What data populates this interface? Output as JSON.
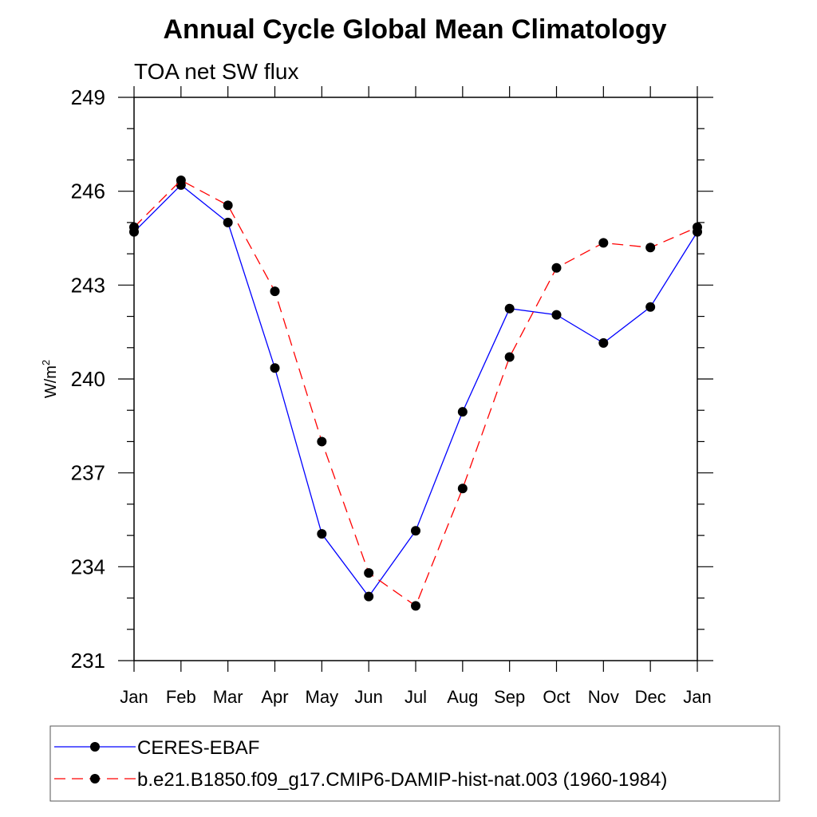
{
  "chart_data": {
    "type": "line",
    "title": "Annual Cycle Global Mean Climatology",
    "subtitle": "TOA net SW flux",
    "ylabel_main": "W/m",
    "ylabel_sup": "2",
    "xlabel": "",
    "categories": [
      "Jan",
      "Feb",
      "Mar",
      "Apr",
      "May",
      "Jun",
      "Jul",
      "Aug",
      "Sep",
      "Oct",
      "Nov",
      "Dec",
      "Jan"
    ],
    "ylim": [
      231,
      249
    ],
    "yticks": [
      231,
      234,
      237,
      240,
      243,
      246,
      249
    ],
    "grid": false,
    "legend_position": "bottom",
    "series": [
      {
        "name": "CERES-EBAF",
        "color": "#0000ff",
        "dash": "solid",
        "marker": "circle",
        "values": [
          244.7,
          246.2,
          245.0,
          240.35,
          235.05,
          233.05,
          235.15,
          238.95,
          242.25,
          242.05,
          241.15,
          242.3,
          244.7
        ]
      },
      {
        "name": "b.e21.B1850.f09_g17.CMIP6-DAMIP-hist-nat.003 (1960-1984)",
        "color": "#ff0000",
        "dash": "dashed",
        "marker": "circle",
        "values": [
          244.85,
          246.35,
          245.55,
          242.8,
          238.0,
          233.8,
          232.75,
          236.5,
          240.7,
          243.55,
          244.35,
          244.2,
          244.85
        ]
      }
    ]
  }
}
